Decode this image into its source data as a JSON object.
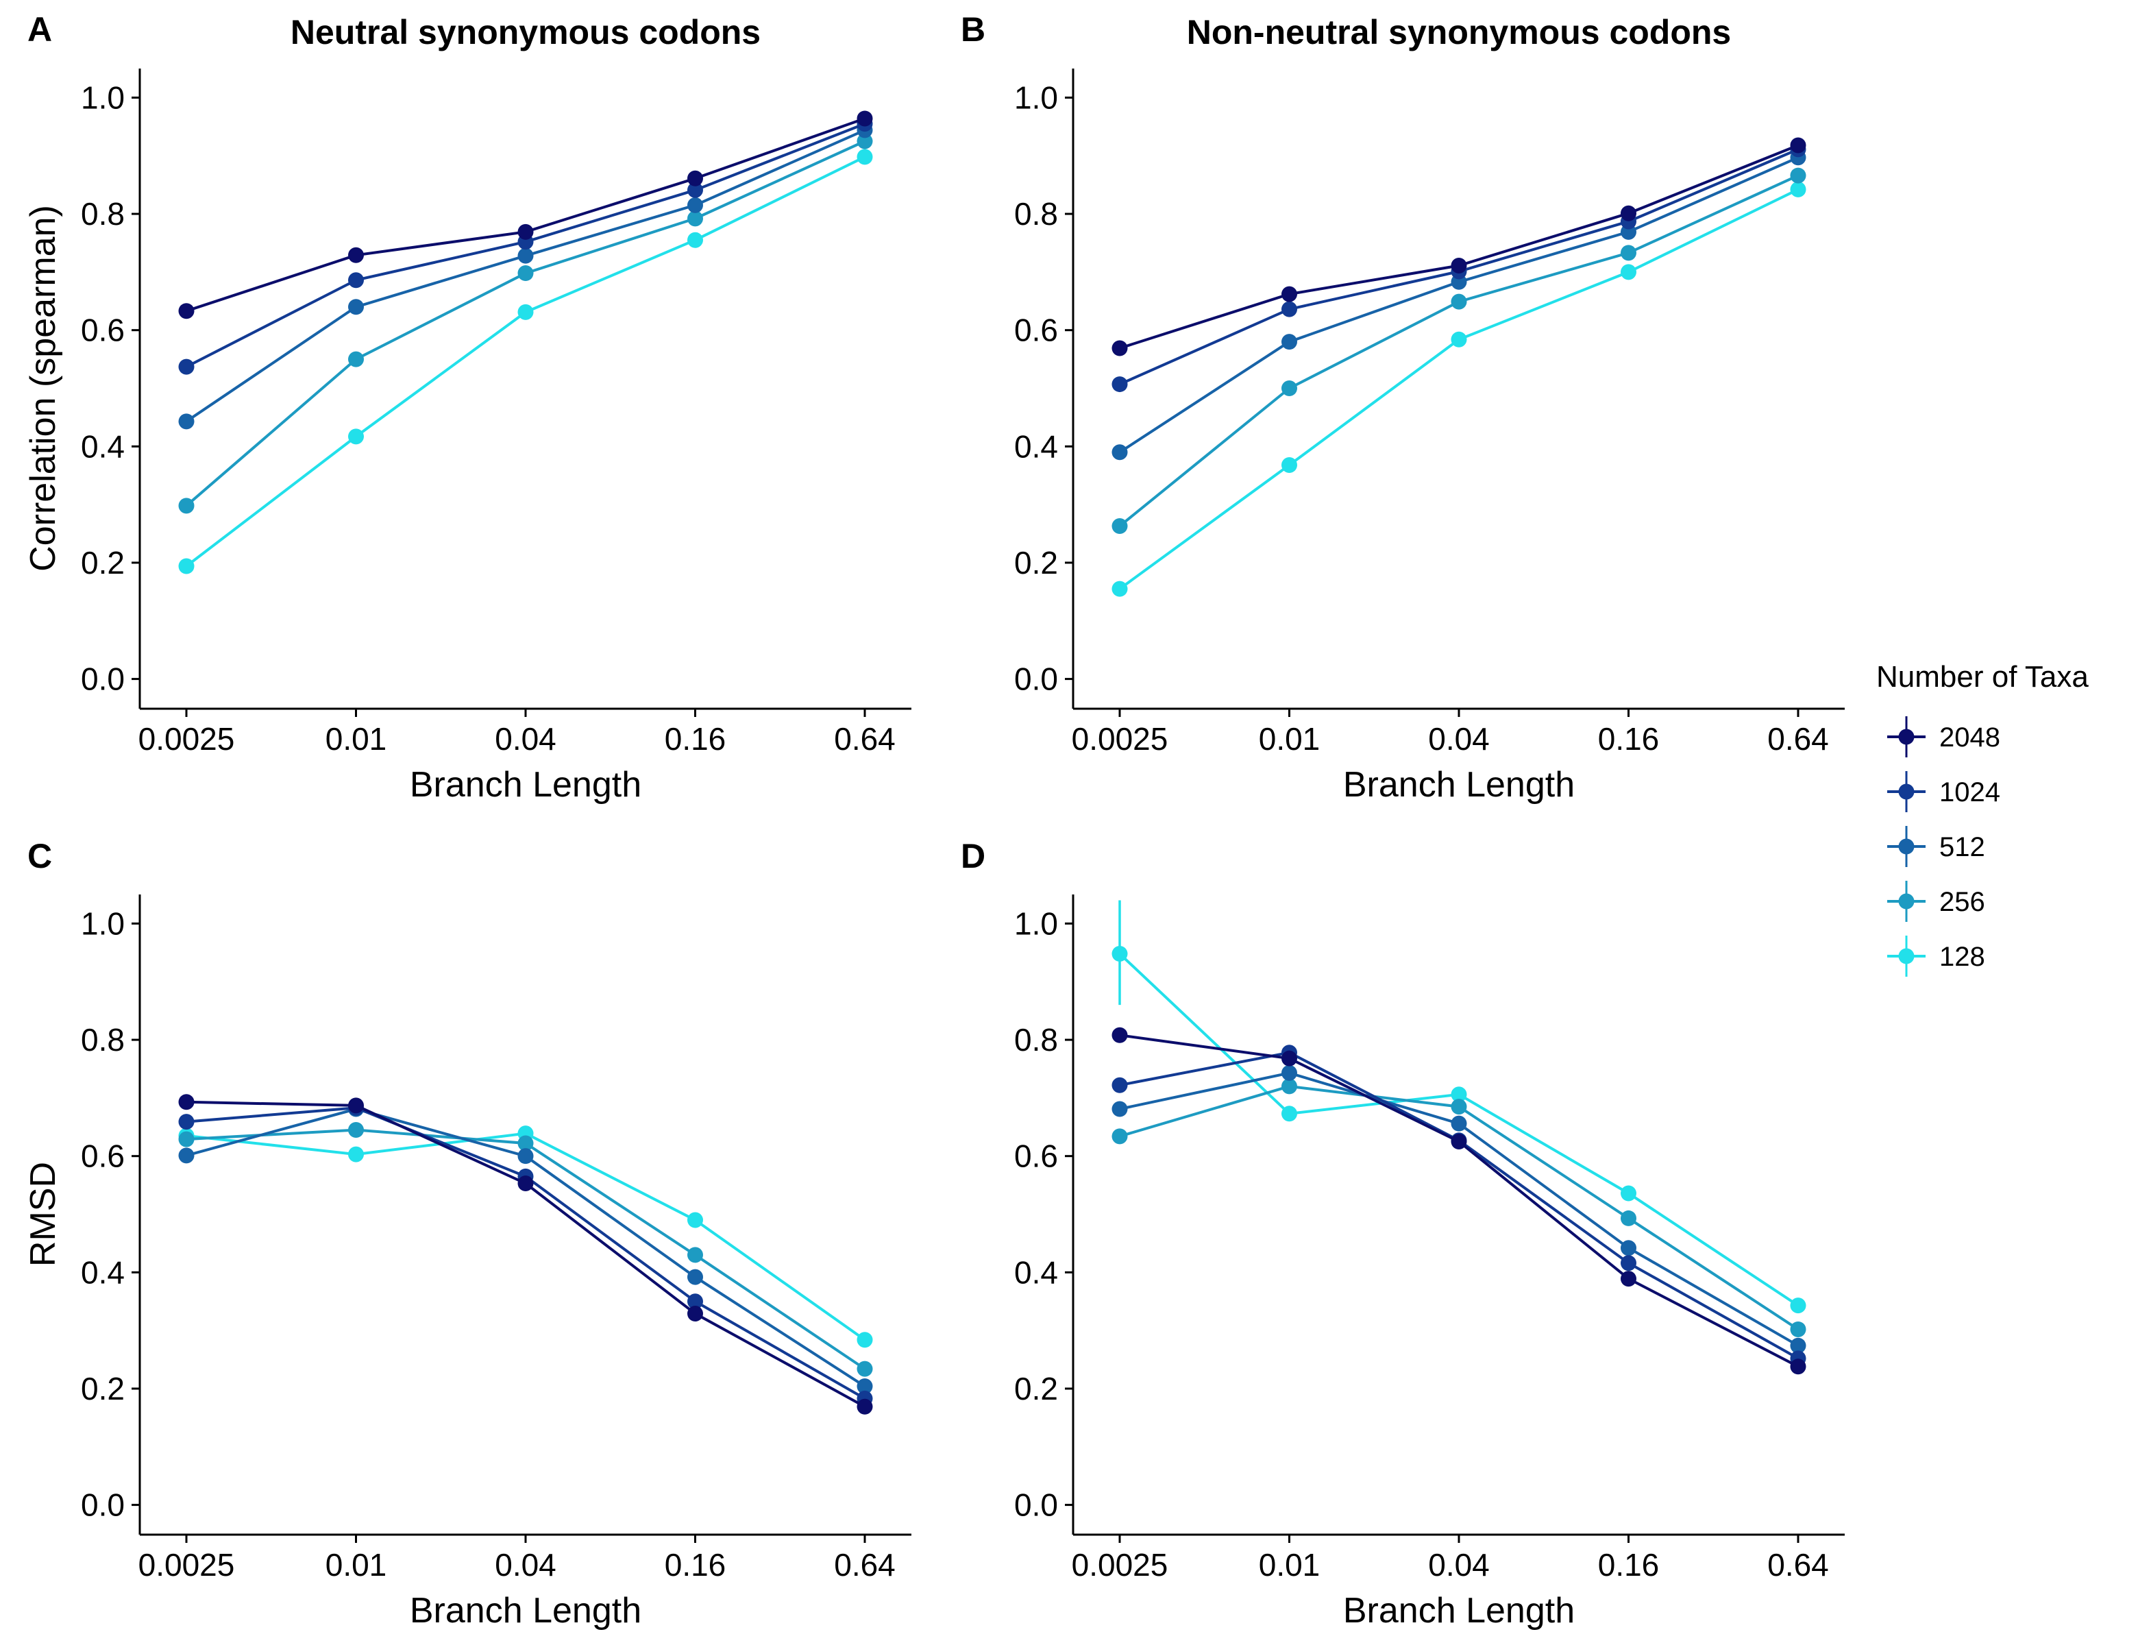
{
  "figure": {
    "legend": {
      "title": "Number of Taxa",
      "placement": "right",
      "entries": [
        "2048",
        "1024",
        "512",
        "256",
        "128"
      ]
    },
    "colors": {
      "2048": "#0b0d6b",
      "1024": "#123a93",
      "512": "#1763a8",
      "256": "#1d9bc2",
      "128": "#22e0ea"
    }
  },
  "chart_data": [
    {
      "id": "A",
      "type": "line",
      "panel_label": "A",
      "title": "Neutral synonymous codons",
      "xlabel": "Branch Length",
      "ylabel": "Correlation (spearman)",
      "categories": [
        "0.0025",
        "0.01",
        "0.04",
        "0.16",
        "0.64"
      ],
      "ylim": [
        -0.05,
        1.05
      ],
      "yticks": [
        "0.0",
        "0.2",
        "0.4",
        "0.6",
        "0.8",
        "1.0"
      ],
      "grid": false,
      "series": [
        {
          "name": "2048",
          "values": [
            0.633,
            0.729,
            0.769,
            0.861,
            0.964
          ]
        },
        {
          "name": "1024",
          "values": [
            0.537,
            0.686,
            0.752,
            0.841,
            0.955
          ]
        },
        {
          "name": "512",
          "values": [
            0.443,
            0.64,
            0.728,
            0.815,
            0.944
          ]
        },
        {
          "name": "256",
          "values": [
            0.298,
            0.55,
            0.698,
            0.792,
            0.925
          ]
        },
        {
          "name": "128",
          "values": [
            0.194,
            0.417,
            0.631,
            0.755,
            0.898
          ]
        }
      ]
    },
    {
      "id": "B",
      "type": "line",
      "panel_label": "B",
      "title": "Non-neutral synonymous codons",
      "xlabel": "Branch Length",
      "ylabel": "",
      "categories": [
        "0.0025",
        "0.01",
        "0.04",
        "0.16",
        "0.64"
      ],
      "ylim": [
        -0.05,
        1.05
      ],
      "yticks": [
        "0.0",
        "0.2",
        "0.4",
        "0.6",
        "0.8",
        "1.0"
      ],
      "grid": false,
      "series": [
        {
          "name": "2048",
          "values": [
            0.569,
            0.662,
            0.711,
            0.801,
            0.918
          ]
        },
        {
          "name": "1024",
          "values": [
            0.507,
            0.636,
            0.701,
            0.787,
            0.911
          ]
        },
        {
          "name": "512",
          "values": [
            0.39,
            0.58,
            0.683,
            0.769,
            0.897
          ]
        },
        {
          "name": "256",
          "values": [
            0.263,
            0.5,
            0.649,
            0.733,
            0.866
          ]
        },
        {
          "name": "128",
          "values": [
            0.155,
            0.368,
            0.584,
            0.7,
            0.842
          ]
        }
      ]
    },
    {
      "id": "C",
      "type": "line",
      "panel_label": "C",
      "title": "",
      "xlabel": "Branch Length",
      "ylabel": "RMSD",
      "categories": [
        "0.0025",
        "0.01",
        "0.04",
        "0.16",
        "0.64"
      ],
      "ylim": [
        -0.05,
        1.05
      ],
      "yticks": [
        "0.0",
        "0.2",
        "0.4",
        "0.6",
        "0.8",
        "1.0"
      ],
      "grid": false,
      "series": [
        {
          "name": "2048",
          "values": [
            0.693,
            0.687,
            0.553,
            0.329,
            0.169
          ]
        },
        {
          "name": "1024",
          "values": [
            0.659,
            0.683,
            0.565,
            0.35,
            0.183
          ]
        },
        {
          "name": "512",
          "values": [
            0.601,
            0.681,
            0.6,
            0.392,
            0.204
          ]
        },
        {
          "name": "256",
          "values": [
            0.629,
            0.645,
            0.622,
            0.43,
            0.234
          ]
        },
        {
          "name": "128",
          "values": [
            0.635,
            0.603,
            0.639,
            0.49,
            0.284
          ]
        }
      ]
    },
    {
      "id": "D",
      "type": "line",
      "panel_label": "D",
      "title": "",
      "xlabel": "Branch Length",
      "ylabel": "",
      "categories": [
        "0.0025",
        "0.01",
        "0.04",
        "0.16",
        "0.64"
      ],
      "ylim": [
        -0.05,
        1.05
      ],
      "yticks": [
        "0.0",
        "0.2",
        "0.4",
        "0.6",
        "0.8",
        "1.0"
      ],
      "grid": false,
      "series": [
        {
          "name": "2048",
          "values": [
            0.808,
            0.768,
            0.625,
            0.389,
            0.238
          ]
        },
        {
          "name": "1024",
          "values": [
            0.722,
            0.778,
            0.627,
            0.416,
            0.252
          ]
        },
        {
          "name": "512",
          "values": [
            0.681,
            0.743,
            0.656,
            0.442,
            0.274
          ]
        },
        {
          "name": "256",
          "values": [
            0.634,
            0.72,
            0.685,
            0.493,
            0.302
          ]
        },
        {
          "name": "128",
          "values": [
            0.948,
            0.673,
            0.706,
            0.536,
            0.343
          ],
          "error_bars": [
            [
              0.86,
              1.04
            ],
            null,
            null,
            null,
            null
          ]
        }
      ]
    }
  ]
}
